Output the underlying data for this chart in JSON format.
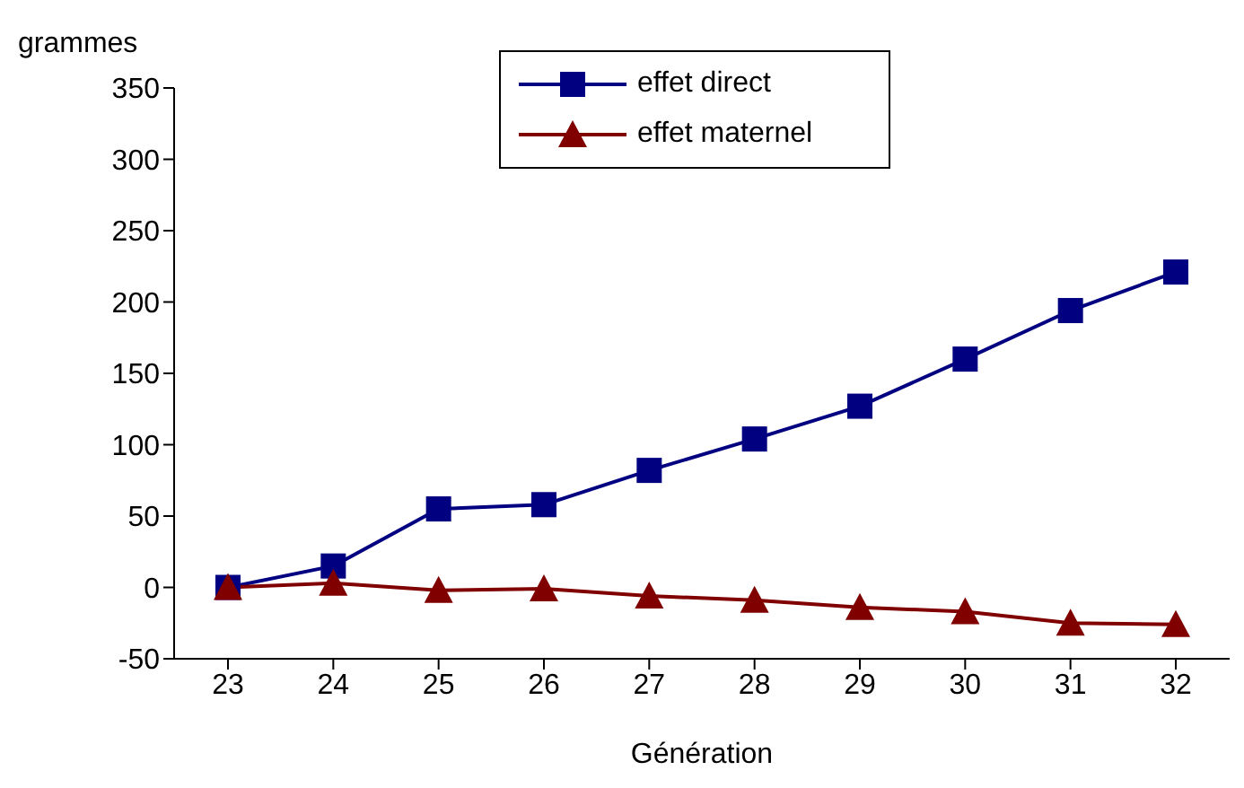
{
  "chart_data": {
    "type": "line",
    "xlabel": "Génération",
    "ylabel": "grammes",
    "categories": [
      "23",
      "24",
      "25",
      "26",
      "27",
      "28",
      "29",
      "30",
      "31",
      "32"
    ],
    "series": [
      {
        "name": "effet direct",
        "color": "#000080",
        "marker": "square",
        "values": [
          0,
          15,
          55,
          58,
          82,
          104,
          127,
          160,
          194,
          221
        ]
      },
      {
        "name": "effet maternel",
        "color": "#800000",
        "marker": "triangle",
        "values": [
          0,
          3,
          -2,
          -1,
          -6,
          -9,
          -14,
          -17,
          -25,
          -26
        ]
      }
    ],
    "ylim": [
      -50,
      350
    ],
    "yticks": [
      -50,
      0,
      50,
      100,
      150,
      200,
      250,
      300,
      350
    ],
    "grid": false,
    "legend": "top"
  }
}
